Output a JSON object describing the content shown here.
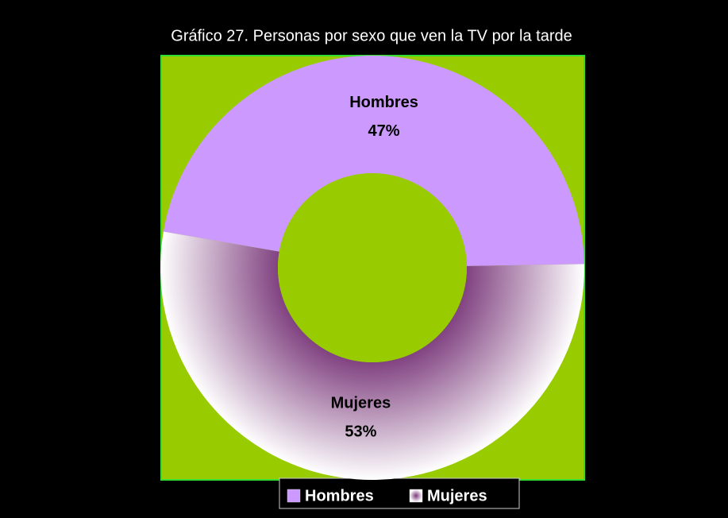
{
  "chart_data": {
    "type": "donut",
    "title": "Gráfico 27. Personas por sexo que ven la TV por la tarde",
    "labels": [
      "Hombres",
      "Mujeres"
    ],
    "values": [
      47,
      53
    ],
    "value_labels": [
      "47%",
      "53%"
    ],
    "colors": [
      "#cc99ff",
      "#7b3a7b"
    ],
    "background": "#99cc00",
    "legend": "bottom"
  }
}
